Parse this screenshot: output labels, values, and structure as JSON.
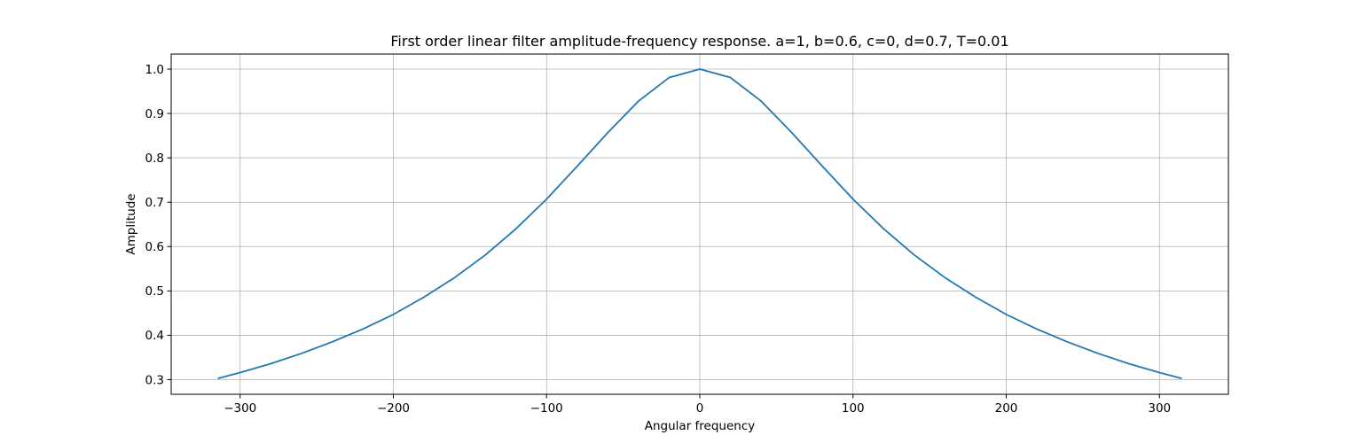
{
  "chart_data": {
    "type": "line",
    "title": "First order linear filter amplitude-frequency response. a=1, b=0.6, c=0, d=0.7, T=0.01",
    "xlabel": "Angular frequency",
    "ylabel": "Amplitude",
    "xlim": [
      -345,
      345
    ],
    "ylim": [
      0.267,
      1.034
    ],
    "xticks": [
      -300,
      -200,
      -100,
      0,
      100,
      200,
      300
    ],
    "xtick_labels": [
      "−300",
      "−200",
      "−100",
      "0",
      "100",
      "200",
      "300"
    ],
    "yticks": [
      0.3,
      0.4,
      0.5,
      0.6,
      0.7,
      0.8,
      0.9,
      1.0
    ],
    "ytick_labels": [
      "0.3",
      "0.4",
      "0.5",
      "0.6",
      "0.7",
      "0.8",
      "0.9",
      "1.0"
    ],
    "grid": true,
    "line_color": "#1f77b4",
    "series": [
      {
        "x": [
          -314.16,
          -300,
          -280,
          -260,
          -240,
          -220,
          -200,
          -180,
          -160,
          -140,
          -120,
          -100,
          -80,
          -60,
          -40,
          -20,
          0,
          20,
          40,
          60,
          80,
          100,
          120,
          140,
          160,
          180,
          200,
          220,
          240,
          260,
          280,
          300,
          314.16
        ],
        "values": [
          0.303,
          0.316,
          0.336,
          0.359,
          0.385,
          0.414,
          0.447,
          0.486,
          0.53,
          0.581,
          0.64,
          0.707,
          0.781,
          0.857,
          0.928,
          0.981,
          1.0,
          0.981,
          0.928,
          0.857,
          0.781,
          0.707,
          0.64,
          0.581,
          0.53,
          0.486,
          0.447,
          0.414,
          0.385,
          0.359,
          0.336,
          0.316,
          0.303
        ]
      }
    ]
  }
}
